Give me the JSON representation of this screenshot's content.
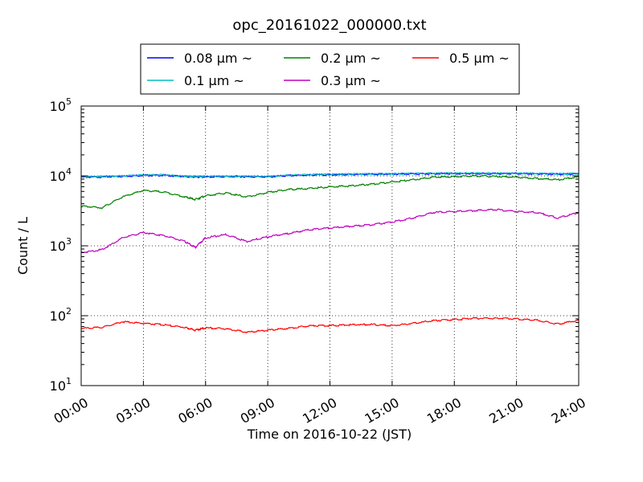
{
  "chart_data": {
    "type": "line",
    "title": "opc_20161022_000000.txt",
    "xlabel": "Time on 2016-10-22 (JST)",
    "ylabel": "Count / L",
    "xlim": [
      "00:00",
      "24:00"
    ],
    "ylim": [
      10,
      100000
    ],
    "yscale": "log",
    "grid": true,
    "legend_position": "top",
    "x_ticks": [
      "00:00",
      "03:00",
      "06:00",
      "09:00",
      "12:00",
      "15:00",
      "18:00",
      "21:00",
      "24:00"
    ],
    "y_ticks": [
      {
        "base": "10",
        "exp": "1",
        "value": 10
      },
      {
        "base": "10",
        "exp": "2",
        "value": 100
      },
      {
        "base": "10",
        "exp": "3",
        "value": 1000
      },
      {
        "base": "10",
        "exp": "4",
        "value": 10000
      },
      {
        "base": "10",
        "exp": "5",
        "value": 100000
      }
    ],
    "x": [
      "00:00",
      "01:00",
      "02:00",
      "03:00",
      "04:00",
      "05:00",
      "05:30",
      "06:00",
      "07:00",
      "08:00",
      "09:00",
      "10:00",
      "11:00",
      "12:00",
      "13:00",
      "14:00",
      "15:00",
      "16:00",
      "17:00",
      "18:00",
      "19:00",
      "20:00",
      "21:00",
      "22:00",
      "23:00",
      "24:00"
    ],
    "series": [
      {
        "name": "0.08 μm ~",
        "color": "#0000ff",
        "values": [
          9600,
          9700,
          9900,
          10200,
          10200,
          9800,
          9700,
          9700,
          9800,
          9800,
          9700,
          10100,
          10300,
          10400,
          10500,
          10600,
          10600,
          10700,
          10800,
          10800,
          10800,
          10800,
          10800,
          10700,
          10600,
          10700
        ]
      },
      {
        "name": "0.1 μm ~",
        "color": "#00bfbf",
        "values": [
          9700,
          9800,
          10000,
          10300,
          10300,
          9900,
          9800,
          9800,
          9900,
          9900,
          9800,
          10200,
          10400,
          10500,
          10600,
          10700,
          10700,
          10800,
          10900,
          10900,
          10900,
          10900,
          10900,
          10800,
          10700,
          10800
        ]
      },
      {
        "name": "0.2 μm ~",
        "color": "#008000",
        "values": [
          3700,
          3500,
          5000,
          6200,
          5900,
          5000,
          4600,
          5200,
          5700,
          5000,
          5800,
          6400,
          6600,
          7000,
          7200,
          7600,
          8200,
          8800,
          9600,
          9800,
          10000,
          9800,
          9600,
          9200,
          8800,
          9700
        ]
      },
      {
        "name": "0.3 μm ~",
        "color": "#bf00bf",
        "values": [
          800,
          880,
          1300,
          1550,
          1400,
          1150,
          950,
          1300,
          1450,
          1150,
          1350,
          1500,
          1700,
          1800,
          1900,
          2000,
          2200,
          2500,
          3000,
          3100,
          3200,
          3300,
          3100,
          3000,
          2500,
          3000
        ]
      },
      {
        "name": "0.5 μm ~",
        "color": "#ff0000",
        "values": [
          66,
          68,
          82,
          78,
          74,
          68,
          62,
          67,
          65,
          58,
          62,
          66,
          72,
          72,
          74,
          75,
          72,
          78,
          85,
          88,
          92,
          92,
          90,
          86,
          76,
          86
        ]
      }
    ]
  }
}
